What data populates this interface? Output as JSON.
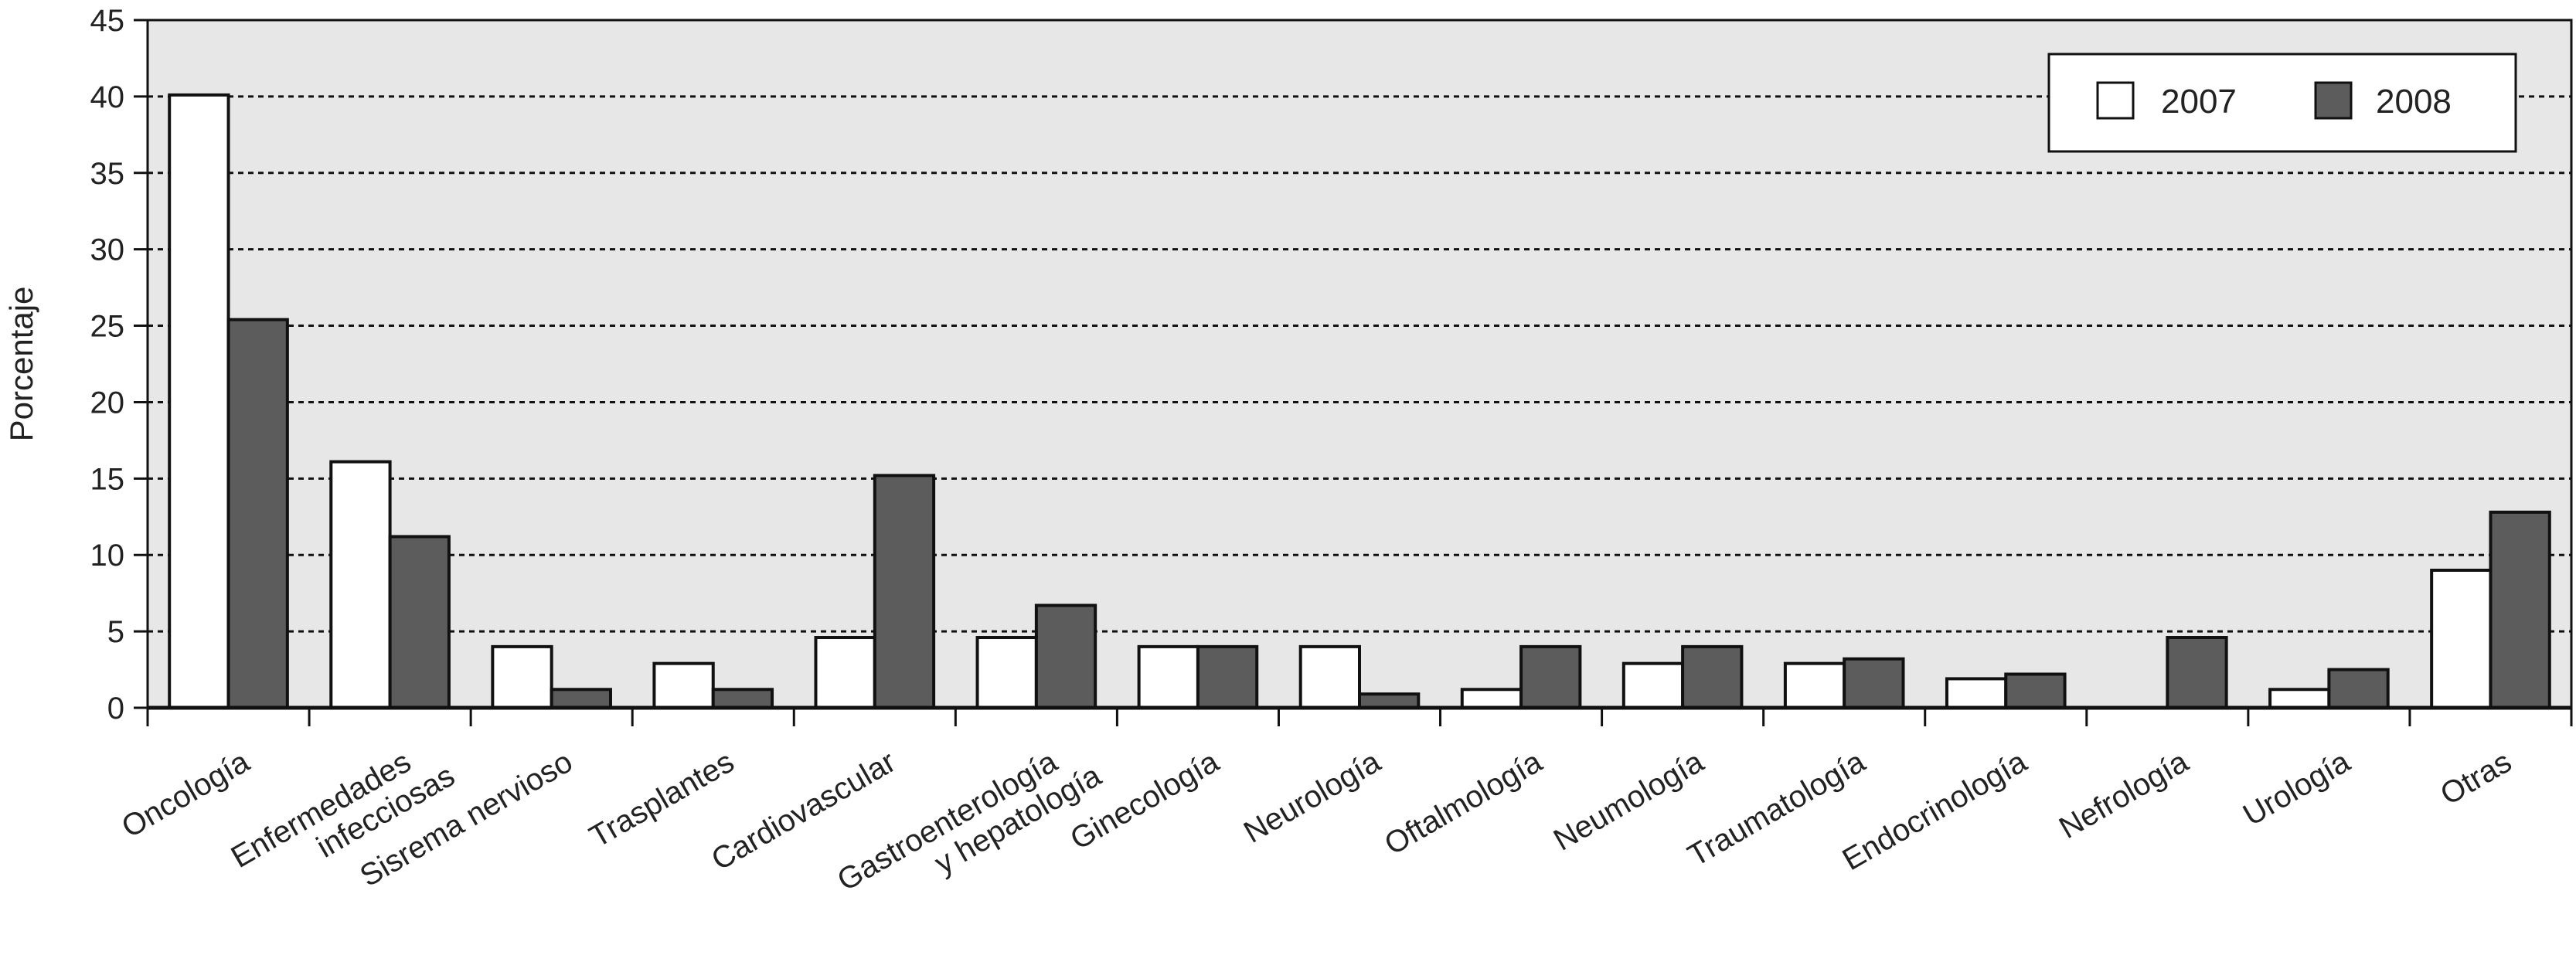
{
  "chart_data": {
    "type": "bar",
    "title": "",
    "xlabel": "",
    "ylabel": "Porcentaje",
    "ylim": [
      0,
      45
    ],
    "yticks": [
      0,
      5,
      10,
      15,
      20,
      25,
      30,
      35,
      40,
      45
    ],
    "grid": true,
    "legend_position": "top-right",
    "categories": [
      [
        "Oncología"
      ],
      [
        "Enfermedades",
        "infecciosas"
      ],
      [
        "Sisrema nervioso"
      ],
      [
        "Trasplantes"
      ],
      [
        "Cardiovascular"
      ],
      [
        "Gastroenterología",
        "y hepatología"
      ],
      [
        "Ginecología"
      ],
      [
        "Neurología"
      ],
      [
        "Oftalmología"
      ],
      [
        "Neumología"
      ],
      [
        "Traumatología"
      ],
      [
        "Endocrinología"
      ],
      [
        "Nefrología"
      ],
      [
        "Urología"
      ],
      [
        "Otras"
      ]
    ],
    "series": [
      {
        "name": "2007",
        "color": "#ffffff",
        "values": [
          40.1,
          16.1,
          4.0,
          2.9,
          4.6,
          4.6,
          4.0,
          4.0,
          1.2,
          2.9,
          2.9,
          1.9,
          0,
          1.2,
          9.0
        ]
      },
      {
        "name": "2008",
        "color": "#5c5c5c",
        "values": [
          25.4,
          11.2,
          1.2,
          1.2,
          15.2,
          6.7,
          4.0,
          0.9,
          4.0,
          4.0,
          3.2,
          2.2,
          4.6,
          2.5,
          12.8
        ]
      }
    ],
    "plot_background": "#e7e7e7"
  }
}
